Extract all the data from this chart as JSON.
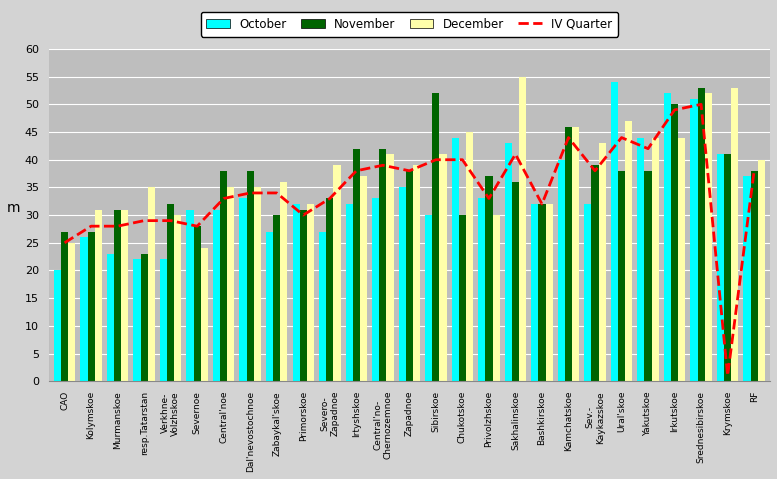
{
  "categories": [
    "CAO",
    "Kolymskoe",
    "Murmanskoe",
    "resp.Tatarstan",
    "Verkhne-\nVolzhskoe",
    "Severnoe",
    "Central`noe",
    "Dal`nevostochnoe",
    "Zabaykal`skoe",
    "Primorskoe",
    "Severo-\nZapadnoe",
    "Irtyshskoe",
    "Central`no-\nChernozemnoe",
    "Zapadnoe",
    "Sibirskoe",
    "Chukotskoe",
    "Privolzhskoe",
    "Sakhalinskoe",
    "Bashkirskoe",
    "Kamchatskoe",
    "Sev.-\nKaykazskoe",
    "Ural`skoe",
    "Yakutskoe",
    "Irkutskoe",
    "Srednesibirskoe",
    "Krymskoe",
    "RF"
  ],
  "october": [
    20,
    26,
    23,
    22,
    22,
    31,
    31,
    33,
    27,
    32,
    27,
    32,
    33,
    35,
    30,
    44,
    33,
    43,
    32,
    40,
    32,
    54,
    44,
    52,
    51,
    41,
    37
  ],
  "november": [
    27,
    27,
    31,
    23,
    32,
    28,
    38,
    38,
    30,
    31,
    33,
    42,
    42,
    38,
    52,
    30,
    37,
    36,
    32,
    46,
    39,
    38,
    38,
    50,
    53,
    41,
    38
  ],
  "december": [
    25,
    31,
    31,
    35,
    30,
    24,
    35,
    35,
    36,
    32,
    39,
    37,
    41,
    39,
    41,
    45,
    30,
    55,
    32,
    46,
    43,
    47,
    44,
    44,
    52,
    53,
    40
  ],
  "iv_quarter": [
    25,
    28,
    28,
    29,
    29,
    28,
    33,
    34,
    34,
    30,
    33,
    38,
    39,
    38,
    40,
    40,
    33,
    41,
    32,
    44,
    38,
    44,
    42,
    49,
    50,
    1,
    38
  ],
  "bar_width": 0.27,
  "colors": {
    "october": "#00FFFF",
    "november": "#006400",
    "december": "#FFFFAA",
    "iv_quarter": "#FF0000"
  },
  "ylabel": "m",
  "ylim": [
    0,
    60
  ],
  "yticks": [
    0,
    5,
    10,
    15,
    20,
    25,
    30,
    35,
    40,
    45,
    50,
    55,
    60
  ],
  "background_color": "#BEBEBE",
  "plot_bg_color": "#BEBEBE",
  "fig_bg_color": "#D3D3D3",
  "grid_color": "#FFFFFF",
  "legend_labels": [
    "October",
    "November",
    "December",
    "IV Quarter"
  ]
}
